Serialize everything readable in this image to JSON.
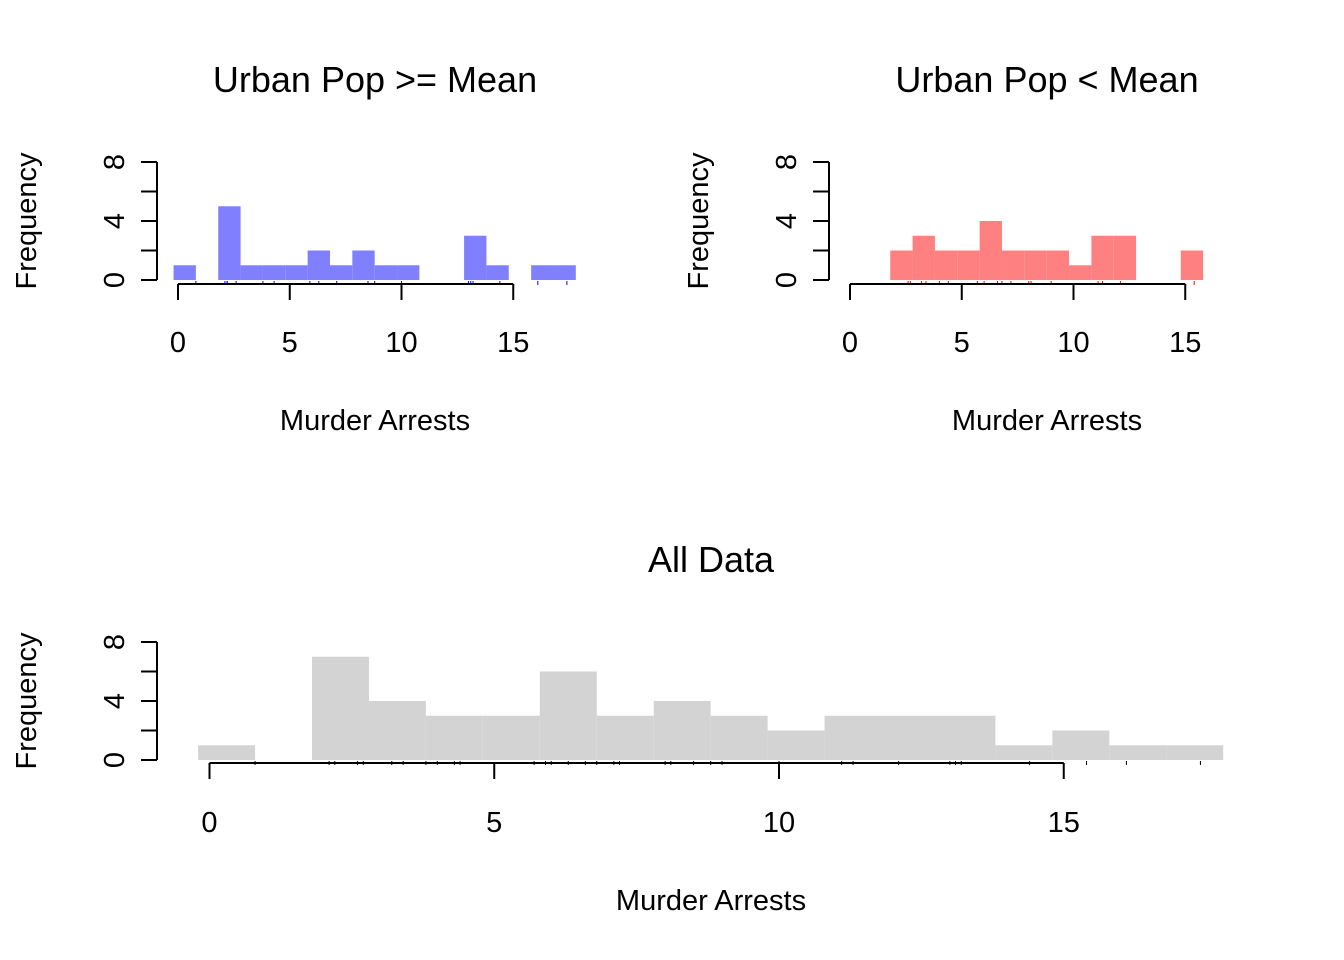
{
  "chart_data": [
    {
      "type": "bar",
      "title": "Urban Pop >= Mean",
      "xlabel": "Murder Arrests",
      "ylabel": "Frequency",
      "bar_color": "#8080ff",
      "rug_color": "#0000ff",
      "bin_width": 1,
      "bins": [
        {
          "x0": 0,
          "x1": 1,
          "count": 1
        },
        {
          "x0": 1,
          "x1": 2,
          "count": 0
        },
        {
          "x0": 2,
          "x1": 3,
          "count": 5
        },
        {
          "x0": 3,
          "x1": 4,
          "count": 1
        },
        {
          "x0": 4,
          "x1": 5,
          "count": 1
        },
        {
          "x0": 5,
          "x1": 6,
          "count": 1
        },
        {
          "x0": 6,
          "x1": 7,
          "count": 2
        },
        {
          "x0": 7,
          "x1": 8,
          "count": 1
        },
        {
          "x0": 8,
          "x1": 9,
          "count": 2
        },
        {
          "x0": 9,
          "x1": 10,
          "count": 1
        },
        {
          "x0": 10,
          "x1": 11,
          "count": 1
        },
        {
          "x0": 11,
          "x1": 12,
          "count": 0
        },
        {
          "x0": 12,
          "x1": 13,
          "count": 0
        },
        {
          "x0": 13,
          "x1": 14,
          "count": 3
        },
        {
          "x0": 14,
          "x1": 15,
          "count": 1
        },
        {
          "x0": 15,
          "x1": 16,
          "count": 0
        },
        {
          "x0": 16,
          "x1": 17,
          "count": 1
        },
        {
          "x0": 17,
          "x1": 18,
          "count": 1
        }
      ],
      "rug": [
        0.8,
        2.1,
        2.2,
        2.2,
        2.6,
        3.8,
        4.3,
        5.9,
        6.3,
        7.1,
        8.5,
        8.8,
        10.0,
        13.0,
        13.1,
        13.2,
        14.4,
        16.1,
        17.4
      ],
      "xlim": [
        -0.2,
        18
      ],
      "ylim": [
        0,
        8
      ],
      "xticks": [
        0,
        5,
        10,
        15
      ],
      "yticks": [
        0,
        4,
        8
      ],
      "yminor": [
        2,
        6
      ]
    },
    {
      "type": "bar",
      "title": "Urban Pop < Mean",
      "xlabel": "Murder Arrests",
      "ylabel": "Frequency",
      "bar_color": "#ff8080",
      "rug_color": "#ff0000",
      "bin_width": 1,
      "bins": [
        {
          "x0": 2,
          "x1": 3,
          "count": 2
        },
        {
          "x0": 3,
          "x1": 4,
          "count": 3
        },
        {
          "x0": 4,
          "x1": 5,
          "count": 2
        },
        {
          "x0": 5,
          "x1": 6,
          "count": 2
        },
        {
          "x0": 6,
          "x1": 7,
          "count": 4
        },
        {
          "x0": 7,
          "x1": 8,
          "count": 2
        },
        {
          "x0": 8,
          "x1": 9,
          "count": 2
        },
        {
          "x0": 9,
          "x1": 10,
          "count": 2
        },
        {
          "x0": 10,
          "x1": 11,
          "count": 1
        },
        {
          "x0": 11,
          "x1": 12,
          "count": 3
        },
        {
          "x0": 12,
          "x1": 13,
          "count": 3
        },
        {
          "x0": 13,
          "x1": 14,
          "count": 0
        },
        {
          "x0": 14,
          "x1": 15,
          "count": 0
        },
        {
          "x0": 15,
          "x1": 16,
          "count": 2
        }
      ],
      "rug": [
        2.6,
        2.7,
        3.2,
        3.4,
        4.0,
        4.4,
        5.7,
        6.0,
        6.6,
        6.8,
        7.2,
        8.0,
        8.1,
        9.0,
        11.1,
        11.3,
        12.1,
        15.4
      ],
      "xlim": [
        -0.2,
        16
      ],
      "ylim": [
        0,
        8
      ],
      "xticks": [
        0,
        5,
        10,
        15
      ],
      "yticks": [
        0,
        4,
        8
      ],
      "yminor": [
        2,
        6
      ]
    },
    {
      "type": "bar",
      "title": "All Data",
      "xlabel": "Murder Arrests",
      "ylabel": "Frequency",
      "bar_color": "#d3d3d3",
      "rug_color": "#000000",
      "bin_width": 1,
      "bins": [
        {
          "x0": 0,
          "x1": 1,
          "count": 1
        },
        {
          "x0": 1,
          "x1": 2,
          "count": 0
        },
        {
          "x0": 2,
          "x1": 3,
          "count": 7
        },
        {
          "x0": 3,
          "x1": 4,
          "count": 4
        },
        {
          "x0": 4,
          "x1": 5,
          "count": 3
        },
        {
          "x0": 5,
          "x1": 6,
          "count": 3
        },
        {
          "x0": 6,
          "x1": 7,
          "count": 6
        },
        {
          "x0": 7,
          "x1": 8,
          "count": 3
        },
        {
          "x0": 8,
          "x1": 9,
          "count": 4
        },
        {
          "x0": 9,
          "x1": 10,
          "count": 3
        },
        {
          "x0": 10,
          "x1": 11,
          "count": 2
        },
        {
          "x0": 11,
          "x1": 12,
          "count": 3
        },
        {
          "x0": 12,
          "x1": 13,
          "count": 3
        },
        {
          "x0": 13,
          "x1": 14,
          "count": 3
        },
        {
          "x0": 14,
          "x1": 15,
          "count": 1
        },
        {
          "x0": 15,
          "x1": 16,
          "count": 2
        },
        {
          "x0": 16,
          "x1": 17,
          "count": 1
        },
        {
          "x0": 17,
          "x1": 18,
          "count": 1
        }
      ],
      "rug": [
        0.8,
        2.1,
        2.2,
        2.6,
        2.7,
        3.2,
        3.4,
        3.8,
        4.0,
        4.3,
        4.4,
        5.7,
        5.9,
        6.0,
        6.3,
        6.6,
        6.8,
        7.1,
        7.2,
        8.0,
        8.1,
        8.5,
        8.8,
        9.0,
        10.0,
        11.1,
        11.3,
        12.1,
        13.0,
        13.1,
        13.2,
        14.4,
        15.4,
        16.1,
        17.4
      ],
      "xlim": [
        -0.2,
        18
      ],
      "ylim": [
        0,
        8
      ],
      "xticks": [
        0,
        5,
        10,
        15
      ],
      "yticks": [
        0,
        4,
        8
      ],
      "yminor": [
        2,
        6
      ]
    }
  ]
}
